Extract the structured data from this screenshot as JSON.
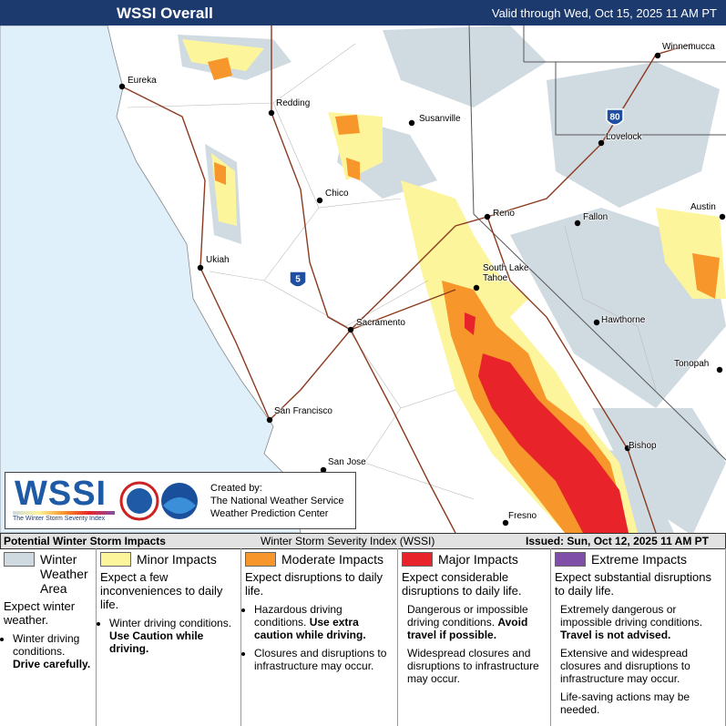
{
  "header": {
    "title": "WSSI Overall",
    "valid": "Valid through Wed, Oct 15, 2025 11 AM PT"
  },
  "cities": [
    {
      "name": "Eureka"
    },
    {
      "name": "Redding"
    },
    {
      "name": "Susanville"
    },
    {
      "name": "Winnemucca"
    },
    {
      "name": "Lovelock"
    },
    {
      "name": "Chico"
    },
    {
      "name": "Reno"
    },
    {
      "name": "Fallon"
    },
    {
      "name": "Austin"
    },
    {
      "name": "Ukiah"
    },
    {
      "name": "South Lake Tahoe"
    },
    {
      "name": "Sacramento"
    },
    {
      "name": "Hawthorne"
    },
    {
      "name": "Tonopah"
    },
    {
      "name": "San Francisco"
    },
    {
      "name": "Bishop"
    },
    {
      "name": "San Jose"
    },
    {
      "name": "Fresno"
    }
  ],
  "interstates": [
    {
      "label": "80"
    },
    {
      "label": "5"
    }
  ],
  "logo": {
    "title": "WSSI",
    "subtitle": "The Winter Storm Severity Index",
    "created": "Created by:",
    "org1": "The National Weather Service",
    "org2": "Weather Prediction Center"
  },
  "bar": {
    "left": "Potential Winter Storm Impacts",
    "center": "Winter Storm Severity Index (WSSI)",
    "right": "Issued: Sun, Oct 12, 2025 11 AM PT"
  },
  "legend": [
    {
      "name": "Winter Weather Area",
      "color": "#cfd9e0",
      "description": "Expect winter weather.",
      "items": [
        {
          "text": "Winter driving conditions.",
          "bold": "Drive carefully."
        }
      ]
    },
    {
      "name": "Minor Impacts",
      "color": "#fdf59b",
      "description": "Expect a few inconveniences to daily life.",
      "items": [
        {
          "text": "Winter driving conditions.",
          "bold": "Use Caution while driving."
        }
      ]
    },
    {
      "name": "Moderate Impacts",
      "color": "#f7962b",
      "description": "Expect disruptions to daily life.",
      "items": [
        {
          "text": "Hazardous driving conditions.",
          "bold": "Use extra caution while driving."
        },
        {
          "text": "Closures and disruptions to infrastructure may occur."
        }
      ]
    },
    {
      "name": "Major Impacts",
      "color": "#e8242a",
      "description": "Expect considerable disruptions to daily life.",
      "items": [
        {
          "text": "Dangerous or impossible driving conditions.",
          "bold": "Avoid travel if possible."
        },
        {
          "text": "Widespread closures and disruptions to infrastructure may occur."
        }
      ]
    },
    {
      "name": "Extreme Impacts",
      "color": "#7f4fa8",
      "description": "Expect substantial disruptions to daily life.",
      "items": [
        {
          "text": "Extremely dangerous or impossible driving conditions.",
          "bold": "Travel is not advised."
        },
        {
          "text": "Extensive and widespread closures and disruptions to infrastructure may occur."
        },
        {
          "text": "Life-saving actions may be needed."
        }
      ]
    }
  ]
}
